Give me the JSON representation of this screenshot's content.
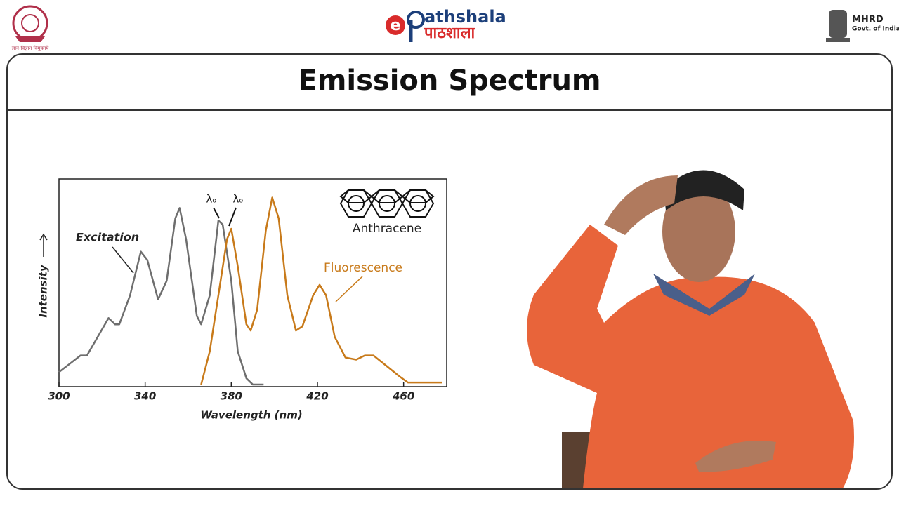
{
  "header": {
    "brand": "athshala",
    "brand_hindi": "पाठशाला",
    "ministry": "MHRD",
    "govt": "Govt. of India",
    "motto": "ज्ञान-विज्ञान विमुक्तये"
  },
  "slide_title": "Emission Spectrum",
  "chart_data": {
    "type": "line",
    "x_label": "Wavelength (nm)",
    "y_label": "Intensity",
    "annotations": {
      "molecule": "Anthracene",
      "lambda_left": "λₒ",
      "lambda_right": "λₒ"
    },
    "xlim": [
      300,
      480
    ],
    "xticks": [
      300,
      340,
      380,
      420,
      460
    ],
    "ylim": [
      0,
      100
    ],
    "series": [
      {
        "name": "Excitation",
        "color": "#6e6e6e",
        "x": [
          300,
          305,
          310,
          313,
          318,
          323,
          326,
          328,
          333,
          338,
          341,
          346,
          350,
          354,
          356,
          359,
          364,
          366,
          370,
          374,
          376,
          380,
          383,
          387,
          390,
          395
        ],
        "values": [
          7,
          11,
          15,
          15,
          24,
          33,
          30,
          30,
          44,
          65,
          61,
          42,
          51,
          81,
          86,
          71,
          34,
          30,
          44,
          80,
          78,
          51,
          17,
          4,
          1,
          1
        ]
      },
      {
        "name": "Fluorescence",
        "color": "#c87a1a",
        "x": [
          366,
          370,
          374,
          378,
          380,
          383,
          387,
          389,
          392,
          396,
          399,
          402,
          406,
          410,
          413,
          418,
          421,
          424,
          428,
          433,
          438,
          442,
          446,
          452,
          458,
          462,
          470,
          478
        ],
        "values": [
          1,
          17,
          44,
          71,
          76,
          58,
          30,
          27,
          37,
          75,
          91,
          81,
          44,
          27,
          29,
          44,
          49,
          44,
          24,
          14,
          13,
          15,
          15,
          10,
          5,
          2,
          2,
          2
        ]
      }
    ]
  }
}
